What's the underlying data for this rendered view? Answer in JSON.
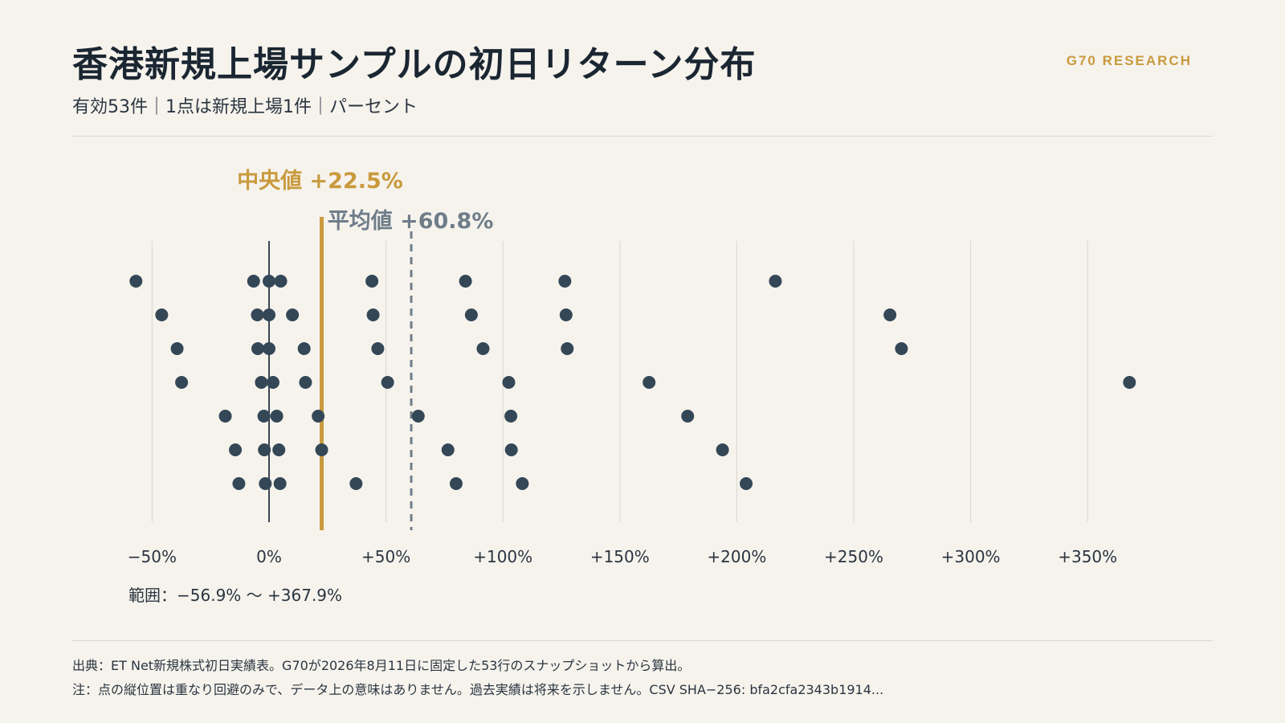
{
  "header": {
    "title": "香港新規上場サンプルの初日リターン分布",
    "subtitle": "有効53件｜1点は新規上場1件｜パーセント",
    "brand": "G70 RESEARCH"
  },
  "range_label": "範囲：−56.9% 〜 +367.9%",
  "footer": {
    "source": "出典：ET Net新規株式初日実績表。G70が2026年8月11日に固定した53行のスナップショットから算出。",
    "note": "注：点の縦位置は重なり回避のみで、データ上の意味はありません。過去実績は将来を示しません。CSV SHA−256: bfa2cfa2343b1914..."
  },
  "colors": {
    "background": "#f6f3ed",
    "dot": "#344757",
    "median": "#c99a3e",
    "mean": "#6f7d89",
    "zero_line": "#3a4652",
    "grid": "#dddad3"
  },
  "chart_data": {
    "type": "scatter",
    "x_unit": "%",
    "xlim": [
      -60,
      375
    ],
    "ticks": [
      -50,
      0,
      50,
      100,
      150,
      200,
      250,
      300,
      350
    ],
    "tick_labels": [
      "−50%",
      "0%",
      "+50%",
      "+100%",
      "+150%",
      "+200%",
      "+250%",
      "+300%",
      "+350%"
    ],
    "grid": true,
    "median": {
      "label": "中央値 +22.5%",
      "value": 22.5
    },
    "mean": {
      "label": "平均値 +60.8%",
      "value": 60.8
    },
    "points": [
      {
        "x": -56.9,
        "row": 0
      },
      {
        "x": -6.6,
        "row": 0
      },
      {
        "x": 0.0,
        "row": 0
      },
      {
        "x": 5.0,
        "row": 0
      },
      {
        "x": 44.0,
        "row": 0
      },
      {
        "x": 84.0,
        "row": 0
      },
      {
        "x": 126.5,
        "row": 0
      },
      {
        "x": 216.5,
        "row": 0
      },
      {
        "x": -45.9,
        "row": 1
      },
      {
        "x": -5.0,
        "row": 1
      },
      {
        "x": 0.0,
        "row": 1
      },
      {
        "x": 10.0,
        "row": 1
      },
      {
        "x": 44.5,
        "row": 1
      },
      {
        "x": 86.5,
        "row": 1
      },
      {
        "x": 127.0,
        "row": 1
      },
      {
        "x": 265.5,
        "row": 1
      },
      {
        "x": -39.3,
        "row": 2
      },
      {
        "x": -4.8,
        "row": 2
      },
      {
        "x": 0.0,
        "row": 2
      },
      {
        "x": 15.0,
        "row": 2
      },
      {
        "x": 46.5,
        "row": 2
      },
      {
        "x": 91.5,
        "row": 2
      },
      {
        "x": 127.5,
        "row": 2
      },
      {
        "x": 270.4,
        "row": 2
      },
      {
        "x": -37.4,
        "row": 3
      },
      {
        "x": -3.3,
        "row": 3
      },
      {
        "x": 1.7,
        "row": 3
      },
      {
        "x": 15.6,
        "row": 3
      },
      {
        "x": 50.7,
        "row": 3
      },
      {
        "x": 102.5,
        "row": 3
      },
      {
        "x": 162.5,
        "row": 3
      },
      {
        "x": 367.9,
        "row": 3
      },
      {
        "x": -18.7,
        "row": 4
      },
      {
        "x": -2.2,
        "row": 4
      },
      {
        "x": 3.3,
        "row": 4
      },
      {
        "x": 21.0,
        "row": 4
      },
      {
        "x": 63.8,
        "row": 4
      },
      {
        "x": 103.4,
        "row": 4
      },
      {
        "x": 179.0,
        "row": 4
      },
      {
        "x": -14.4,
        "row": 5
      },
      {
        "x": -2.0,
        "row": 5
      },
      {
        "x": 4.2,
        "row": 5
      },
      {
        "x": 22.5,
        "row": 5
      },
      {
        "x": 76.5,
        "row": 5
      },
      {
        "x": 103.6,
        "row": 5
      },
      {
        "x": 193.9,
        "row": 5
      },
      {
        "x": -12.9,
        "row": 6
      },
      {
        "x": -1.6,
        "row": 6
      },
      {
        "x": 4.7,
        "row": 6
      },
      {
        "x": 37.2,
        "row": 6
      },
      {
        "x": 80.0,
        "row": 6
      },
      {
        "x": 108.3,
        "row": 6
      },
      {
        "x": 204.0,
        "row": 6
      }
    ]
  }
}
